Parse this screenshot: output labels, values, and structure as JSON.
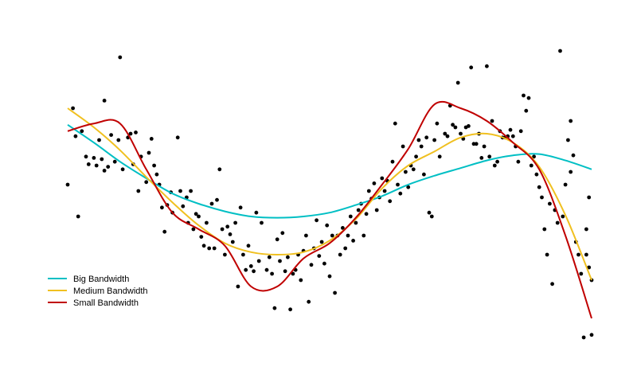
{
  "chart_data": {
    "type": "scatter",
    "title": "",
    "xlabel": "",
    "ylabel": "",
    "axes_visible": false,
    "grid": false,
    "legend_position": "bottom-left",
    "xlim": [
      0,
      1
    ],
    "ylim": [
      -1.6,
      1.4
    ],
    "points": [
      [
        0.0,
        0.0
      ],
      [
        0.01,
        0.6
      ],
      [
        0.015,
        0.38
      ],
      [
        0.02,
        -0.25
      ],
      [
        0.027,
        0.42
      ],
      [
        0.035,
        0.22
      ],
      [
        0.04,
        0.16
      ],
      [
        0.05,
        0.21
      ],
      [
        0.055,
        0.15
      ],
      [
        0.06,
        0.35
      ],
      [
        0.065,
        0.2
      ],
      [
        0.07,
        0.11
      ],
      [
        0.077,
        0.14
      ],
      [
        0.07,
        0.66
      ],
      [
        0.083,
        0.39
      ],
      [
        0.09,
        0.18
      ],
      [
        0.097,
        0.35
      ],
      [
        0.1,
        1.0
      ],
      [
        0.105,
        0.12
      ],
      [
        0.115,
        0.37
      ],
      [
        0.12,
        0.4
      ],
      [
        0.125,
        0.16
      ],
      [
        0.13,
        0.41
      ],
      [
        0.135,
        -0.05
      ],
      [
        0.14,
        0.22
      ],
      [
        0.15,
        0.02
      ],
      [
        0.155,
        0.25
      ],
      [
        0.16,
        0.36
      ],
      [
        0.165,
        0.15
      ],
      [
        0.17,
        0.08
      ],
      [
        0.175,
        0.0
      ],
      [
        0.18,
        -0.18
      ],
      [
        0.185,
        -0.37
      ],
      [
        0.19,
        -0.16
      ],
      [
        0.197,
        -0.06
      ],
      [
        0.2,
        -0.22
      ],
      [
        0.21,
        0.37
      ],
      [
        0.215,
        -0.05
      ],
      [
        0.22,
        -0.17
      ],
      [
        0.227,
        -0.1
      ],
      [
        0.23,
        -0.3
      ],
      [
        0.235,
        -0.05
      ],
      [
        0.24,
        -0.35
      ],
      [
        0.245,
        -0.23
      ],
      [
        0.25,
        -0.25
      ],
      [
        0.255,
        -0.41
      ],
      [
        0.26,
        -0.48
      ],
      [
        0.265,
        -0.3
      ],
      [
        0.27,
        -0.5
      ],
      [
        0.275,
        -0.15
      ],
      [
        0.28,
        -0.5
      ],
      [
        0.285,
        -0.12
      ],
      [
        0.29,
        0.12
      ],
      [
        0.295,
        -0.35
      ],
      [
        0.3,
        -0.55
      ],
      [
        0.305,
        -0.33
      ],
      [
        0.31,
        -0.39
      ],
      [
        0.315,
        -0.45
      ],
      [
        0.32,
        -0.3
      ],
      [
        0.325,
        -0.8
      ],
      [
        0.33,
        -0.18
      ],
      [
        0.335,
        -0.55
      ],
      [
        0.34,
        -0.67
      ],
      [
        0.345,
        -0.48
      ],
      [
        0.35,
        -0.64
      ],
      [
        0.355,
        -0.68
      ],
      [
        0.36,
        -0.22
      ],
      [
        0.365,
        -0.6
      ],
      [
        0.37,
        -0.3
      ],
      [
        0.38,
        -0.67
      ],
      [
        0.385,
        -0.57
      ],
      [
        0.39,
        -0.7
      ],
      [
        0.395,
        -0.97
      ],
      [
        0.4,
        -0.43
      ],
      [
        0.405,
        -0.6
      ],
      [
        0.41,
        -0.38
      ],
      [
        0.415,
        -0.68
      ],
      [
        0.42,
        -0.57
      ],
      [
        0.425,
        -0.98
      ],
      [
        0.43,
        -0.7
      ],
      [
        0.435,
        -0.67
      ],
      [
        0.44,
        -0.55
      ],
      [
        0.445,
        -0.75
      ],
      [
        0.45,
        -0.52
      ],
      [
        0.455,
        -0.4
      ],
      [
        0.46,
        -0.92
      ],
      [
        0.465,
        -0.63
      ],
      [
        0.47,
        -0.5
      ],
      [
        0.475,
        -0.28
      ],
      [
        0.48,
        -0.56
      ],
      [
        0.485,
        -0.45
      ],
      [
        0.49,
        -0.62
      ],
      [
        0.495,
        -0.32
      ],
      [
        0.5,
        -0.72
      ],
      [
        0.505,
        -0.4
      ],
      [
        0.51,
        -0.85
      ],
      [
        0.515,
        -0.4
      ],
      [
        0.52,
        -0.55
      ],
      [
        0.525,
        -0.34
      ],
      [
        0.53,
        -0.5
      ],
      [
        0.535,
        -0.4
      ],
      [
        0.54,
        -0.25
      ],
      [
        0.545,
        -0.44
      ],
      [
        0.55,
        -0.3
      ],
      [
        0.555,
        -0.2
      ],
      [
        0.56,
        -0.15
      ],
      [
        0.565,
        -0.4
      ],
      [
        0.57,
        -0.23
      ],
      [
        0.575,
        -0.05
      ],
      [
        0.58,
        -0.11
      ],
      [
        0.585,
        0.01
      ],
      [
        0.59,
        -0.2
      ],
      [
        0.595,
        -0.1
      ],
      [
        0.6,
        0.05
      ],
      [
        0.605,
        -0.05
      ],
      [
        0.61,
        0.03
      ],
      [
        0.615,
        -0.13
      ],
      [
        0.62,
        0.18
      ],
      [
        0.625,
        0.48
      ],
      [
        0.63,
        0.0
      ],
      [
        0.635,
        -0.07
      ],
      [
        0.64,
        0.3
      ],
      [
        0.645,
        0.1
      ],
      [
        0.65,
        -0.02
      ],
      [
        0.655,
        0.15
      ],
      [
        0.66,
        0.12
      ],
      [
        0.665,
        0.22
      ],
      [
        0.67,
        0.35
      ],
      [
        0.675,
        0.3
      ],
      [
        0.68,
        0.08
      ],
      [
        0.685,
        0.37
      ],
      [
        0.69,
        -0.22
      ],
      [
        0.695,
        -0.25
      ],
      [
        0.7,
        0.35
      ],
      [
        0.705,
        0.48
      ],
      [
        0.71,
        0.22
      ],
      [
        0.72,
        0.4
      ],
      [
        0.725,
        0.38
      ],
      [
        0.73,
        0.62
      ],
      [
        0.735,
        0.47
      ],
      [
        0.74,
        0.45
      ],
      [
        0.745,
        0.8
      ],
      [
        0.75,
        0.4
      ],
      [
        0.755,
        0.36
      ],
      [
        0.76,
        0.45
      ],
      [
        0.765,
        0.46
      ],
      [
        0.77,
        0.92
      ],
      [
        0.775,
        0.32
      ],
      [
        0.78,
        0.32
      ],
      [
        0.785,
        0.4
      ],
      [
        0.79,
        0.21
      ],
      [
        0.795,
        0.3
      ],
      [
        0.8,
        0.93
      ],
      [
        0.805,
        0.22
      ],
      [
        0.81,
        0.5
      ],
      [
        0.815,
        0.15
      ],
      [
        0.82,
        0.18
      ],
      [
        0.825,
        0.42
      ],
      [
        0.83,
        0.37
      ],
      [
        0.835,
        0.37
      ],
      [
        0.84,
        0.38
      ],
      [
        0.845,
        0.43
      ],
      [
        0.85,
        0.38
      ],
      [
        0.855,
        0.3
      ],
      [
        0.86,
        0.18
      ],
      [
        0.865,
        0.42
      ],
      [
        0.87,
        0.7
      ],
      [
        0.875,
        0.58
      ],
      [
        0.88,
        0.68
      ],
      [
        0.885,
        0.15
      ],
      [
        0.89,
        0.22
      ],
      [
        0.895,
        0.08
      ],
      [
        0.9,
        -0.02
      ],
      [
        0.905,
        -0.1
      ],
      [
        0.91,
        -0.35
      ],
      [
        0.915,
        -0.55
      ],
      [
        0.92,
        -0.15
      ],
      [
        0.925,
        -0.78
      ],
      [
        0.93,
        -0.2
      ],
      [
        0.935,
        -0.3
      ],
      [
        0.94,
        1.05
      ],
      [
        0.945,
        -0.25
      ],
      [
        0.95,
        0.0
      ],
      [
        0.955,
        0.35
      ],
      [
        0.96,
        0.1
      ],
      [
        0.965,
        0.23
      ],
      [
        0.97,
        -0.45
      ],
      [
        0.975,
        -0.55
      ],
      [
        0.98,
        -0.7
      ],
      [
        0.985,
        -1.2
      ],
      [
        0.99,
        -0.55
      ],
      [
        0.995,
        -0.65
      ],
      [
        1.0,
        -1.18
      ],
      [
        0.96,
        0.5
      ],
      [
        0.99,
        -0.35
      ],
      [
        0.995,
        -0.1
      ],
      [
        1.0,
        -0.75
      ]
    ],
    "series": [
      {
        "name": "Big Bandwidth",
        "color": "#00BFC4",
        "x": [
          0.0,
          0.05,
          0.1,
          0.15,
          0.2,
          0.25,
          0.3,
          0.35,
          0.4,
          0.45,
          0.5,
          0.55,
          0.6,
          0.65,
          0.7,
          0.75,
          0.8,
          0.85,
          0.9,
          0.95,
          1.0
        ],
        "y": [
          0.47,
          0.33,
          0.18,
          0.05,
          -0.07,
          -0.15,
          -0.21,
          -0.25,
          -0.26,
          -0.25,
          -0.22,
          -0.16,
          -0.09,
          0.0,
          0.07,
          0.13,
          0.19,
          0.23,
          0.24,
          0.19,
          0.12
        ]
      },
      {
        "name": "Medium Bandwidth",
        "color": "#F0C020",
        "x": [
          0.0,
          0.05,
          0.1,
          0.15,
          0.2,
          0.25,
          0.3,
          0.35,
          0.4,
          0.45,
          0.5,
          0.55,
          0.6,
          0.65,
          0.7,
          0.75,
          0.8,
          0.85,
          0.9,
          0.95,
          1.0
        ],
        "y": [
          0.6,
          0.45,
          0.27,
          0.06,
          -0.14,
          -0.32,
          -0.46,
          -0.53,
          -0.55,
          -0.53,
          -0.44,
          -0.27,
          -0.03,
          0.15,
          0.26,
          0.37,
          0.4,
          0.33,
          0.14,
          -0.24,
          -0.75
        ]
      },
      {
        "name": "Small Bandwidth",
        "color": "#C00000",
        "x": [
          0.0,
          0.05,
          0.1,
          0.15,
          0.2,
          0.25,
          0.3,
          0.35,
          0.4,
          0.45,
          0.5,
          0.55,
          0.6,
          0.65,
          0.7,
          0.75,
          0.8,
          0.85,
          0.9,
          0.95,
          1.0
        ],
        "y": [
          0.42,
          0.48,
          0.48,
          0.12,
          -0.22,
          -0.35,
          -0.48,
          -0.8,
          -0.8,
          -0.58,
          -0.46,
          -0.26,
          0.0,
          0.28,
          0.63,
          0.6,
          0.5,
          0.33,
          0.12,
          -0.4,
          -1.05
        ]
      }
    ]
  }
}
